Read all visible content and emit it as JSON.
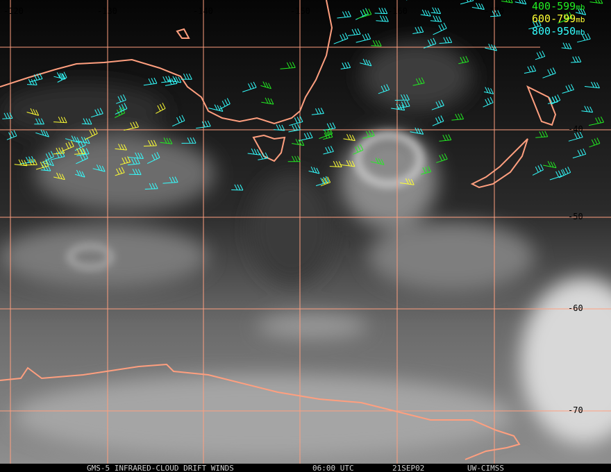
{
  "map": {
    "lon_labels": [
      "-120",
      "-130",
      "-140",
      "-150",
      "-160",
      "-170"
    ],
    "lat_labels": [
      "-40",
      "-50",
      "-60",
      "-70"
    ],
    "legend": [
      {
        "label": "400-599",
        "unit": "mb",
        "color": "#22ee22"
      },
      {
        "label": "600-799",
        "unit": "mb",
        "color": "#ffff33"
      },
      {
        "label": "800-950",
        "unit": "mb",
        "color": "#33ffff"
      }
    ],
    "footer": [
      "GMS-5 INFRARED-CLOUD DRIFT WINDS",
      "06:00 UTC",
      "21SEP02",
      "UW-CIMSS"
    ]
  }
}
